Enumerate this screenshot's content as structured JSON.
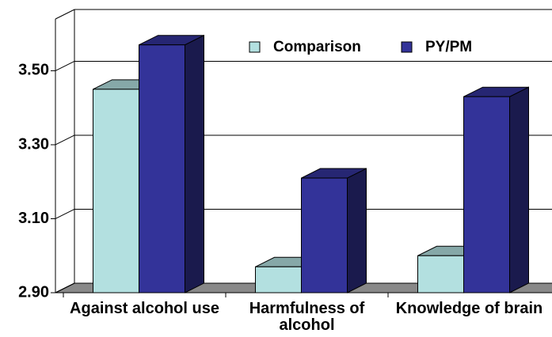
{
  "chart_data": {
    "type": "bar3d",
    "categories": [
      "Against alcohol use",
      "Harmfulness of alcohol",
      "Knowledge of brain"
    ],
    "series": [
      {
        "name": "Comparison",
        "color": "#b3e0e0",
        "values": [
          3.45,
          2.97,
          3.0
        ]
      },
      {
        "name": "PY/PM",
        "color": "#333399",
        "values": [
          3.57,
          3.21,
          3.43
        ]
      }
    ],
    "ylim": [
      2.9,
      3.64
    ],
    "yticks": [
      {
        "value": 2.9,
        "label": "2.90"
      },
      {
        "value": 3.1,
        "label": "3.10"
      },
      {
        "value": 3.3,
        "label": "3.30"
      },
      {
        "value": 3.5,
        "label": "3.50"
      }
    ],
    "grid": true,
    "legend": "top"
  }
}
